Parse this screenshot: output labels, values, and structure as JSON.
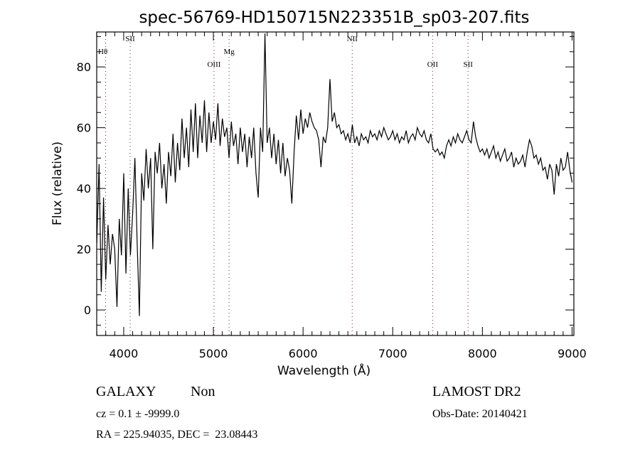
{
  "chart_data": {
    "type": "line",
    "title": "spec-56769-HD150715N223351B_sp03-207.fits",
    "xlabel": "Wavelength (Å)",
    "ylabel": "Flux (relative)",
    "xlim": [
      3699,
      9020
    ],
    "ylim": [
      -8.4,
      91.5
    ],
    "x_ticks": [
      4000,
      5000,
      6000,
      7000,
      8000,
      9000
    ],
    "x_tick_labels": [
      "4000",
      "5000",
      "6000",
      "7000",
      "8000",
      "9000"
    ],
    "y_ticks": [
      0,
      20,
      40,
      60,
      80
    ],
    "y_tick_labels": [
      "0",
      "20",
      "40",
      "60",
      "80"
    ],
    "x_minor_step": 100,
    "y_minor_step": 5,
    "grid": false,
    "line_color": "#000000",
    "marker_color": "#8b1a1a",
    "lines": [
      {
        "label": "Hθ",
        "wavelength": 3798
      },
      {
        "label": "SII",
        "wavelength": 4072
      },
      {
        "label": "OIII",
        "wavelength": 5007
      },
      {
        "label": "Mg",
        "wavelength": 5175
      },
      {
        "label": "NII",
        "wavelength": 6548
      },
      {
        "label": "OII",
        "wavelength": 7445
      },
      {
        "label": "SII",
        "wavelength": 7840
      }
    ],
    "series": [
      {
        "name": "flux",
        "x_start": 3700,
        "x_step": 25,
        "values": [
          22,
          48,
          6,
          37,
          10,
          28,
          15,
          25,
          20,
          1,
          30,
          18,
          45,
          12,
          40,
          18,
          32,
          50,
          22,
          -2,
          45,
          36,
          53,
          40,
          50,
          20,
          52,
          45,
          55,
          40,
          48,
          35,
          52,
          44,
          58,
          42,
          55,
          46,
          63,
          50,
          60,
          47,
          66,
          52,
          68,
          50,
          64,
          55,
          69,
          52,
          65,
          55,
          62,
          56,
          68,
          54,
          63,
          57,
          60,
          50,
          62,
          54,
          58,
          48,
          60,
          52,
          58,
          47,
          57,
          50,
          60,
          45,
          37,
          60,
          52,
          91,
          55,
          60,
          50,
          58,
          48,
          56,
          45,
          55,
          44,
          50,
          46,
          35,
          52,
          64,
          56,
          66,
          58,
          63,
          60,
          65,
          62,
          60,
          59,
          56,
          47,
          57,
          55,
          60,
          76,
          62,
          65,
          60,
          61,
          58,
          59,
          56,
          58,
          55,
          61,
          55,
          57,
          54,
          58,
          56,
          57,
          55,
          59,
          57,
          58,
          56,
          59,
          57,
          60,
          58,
          56,
          57,
          59,
          56,
          58,
          55,
          57,
          56,
          59,
          55,
          57,
          58,
          56,
          60,
          58,
          57,
          59,
          56,
          55,
          58,
          53,
          52,
          53,
          51,
          52,
          50,
          54,
          56,
          54,
          57,
          55,
          58,
          56,
          55,
          57,
          59,
          56,
          55,
          62,
          57,
          54,
          52,
          53,
          51,
          53,
          50,
          52,
          54,
          50,
          52,
          49,
          51,
          53,
          49,
          50,
          52,
          47,
          50,
          48,
          49,
          51,
          47,
          52,
          56,
          54,
          50,
          51,
          48,
          50,
          46,
          47,
          43,
          48,
          46,
          38,
          48,
          44,
          50,
          46,
          47,
          52,
          46,
          42
        ]
      }
    ]
  },
  "footer": {
    "object_type": "GALAXY",
    "subclass": "Non",
    "cz": "cz = 0.1 ± -9999.0",
    "coords": "RA = 225.94035, DEC =  23.08443",
    "survey": "LAMOST DR2",
    "obs_date": "Obs-Date: 20140421"
  }
}
